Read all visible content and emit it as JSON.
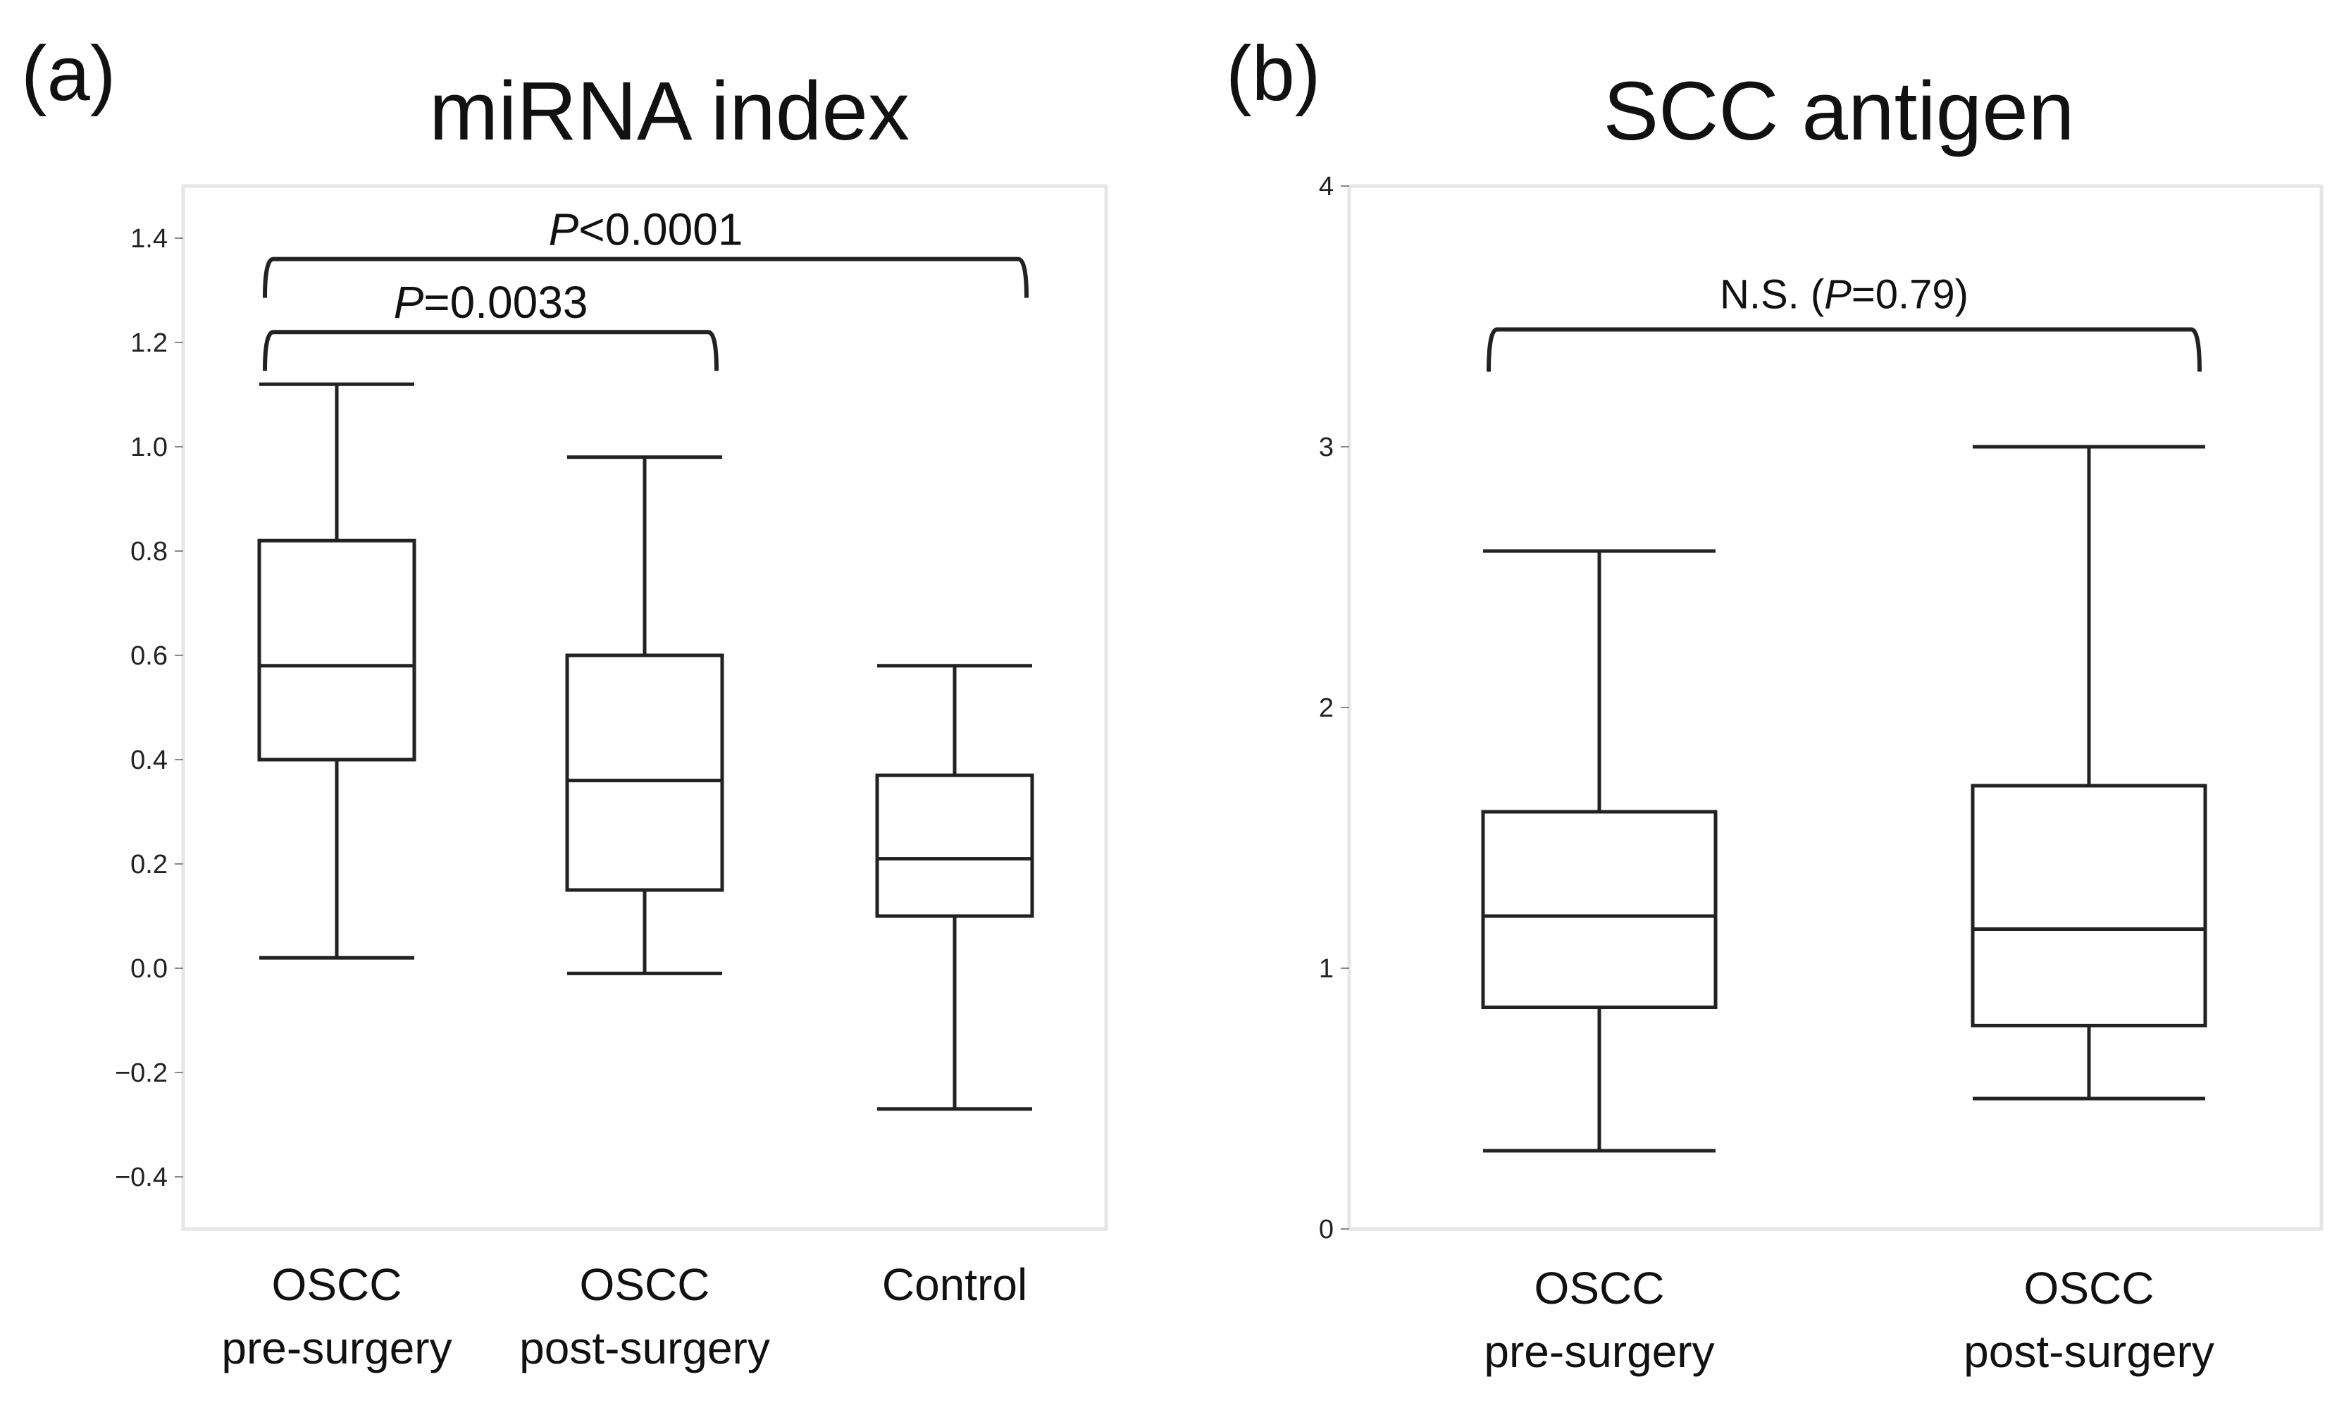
{
  "chart_data": [
    {
      "panel_label": "(a)",
      "title": "miRNA index",
      "type": "box",
      "ylim": [
        -0.5,
        1.5
      ],
      "yticks": [
        -0.4,
        -0.2,
        0.0,
        0.2,
        0.4,
        0.6,
        0.8,
        1.0,
        1.2,
        1.4
      ],
      "ytick_labels": [
        "−0.4",
        "−0.2",
        "0.0",
        "0.2",
        "0.4",
        "0.6",
        "0.8",
        "1.0",
        "1.2",
        "1.4"
      ],
      "categories": [
        {
          "line1": "OSCC",
          "line2": "pre-surgery"
        },
        {
          "line1": "OSCC",
          "line2": "post-surgery"
        },
        {
          "line1": "Control",
          "line2": ""
        }
      ],
      "boxes": [
        {
          "min": 0.02,
          "q1": 0.4,
          "median": 0.58,
          "q3": 0.82,
          "max": 1.12
        },
        {
          "min": -0.01,
          "q1": 0.15,
          "median": 0.36,
          "q3": 0.6,
          "max": 0.98
        },
        {
          "min": -0.27,
          "q1": 0.1,
          "median": 0.21,
          "q3": 0.37,
          "max": 0.58
        }
      ],
      "comparisons": [
        {
          "from": 0,
          "to": 2,
          "italic": "P",
          "rest": "<0.0001",
          "level": 1.36
        },
        {
          "from": 0,
          "to": 1,
          "italic": "P",
          "rest": "=0.0033",
          "level": 1.22
        }
      ]
    },
    {
      "panel_label": "(b)",
      "title": "SCC antigen",
      "type": "box",
      "ylim": [
        0,
        4
      ],
      "yticks": [
        0,
        1,
        2,
        3,
        4
      ],
      "ytick_labels": [
        "0",
        "1",
        "2",
        "3",
        "4"
      ],
      "categories": [
        {
          "line1": "OSCC",
          "line2": "pre-surgery"
        },
        {
          "line1": "OSCC",
          "line2": "post-surgery"
        }
      ],
      "boxes": [
        {
          "min": 0.3,
          "q1": 0.85,
          "median": 1.2,
          "q3": 1.6,
          "max": 2.6
        },
        {
          "min": 0.5,
          "q1": 0.78,
          "median": 1.15,
          "q3": 1.7,
          "max": 3.0
        }
      ],
      "comparisons": [
        {
          "from": 0,
          "to": 1,
          "prefix": "N.S. (",
          "italic": "P",
          "rest": "=0.79)",
          "level": 3.45
        }
      ]
    }
  ]
}
